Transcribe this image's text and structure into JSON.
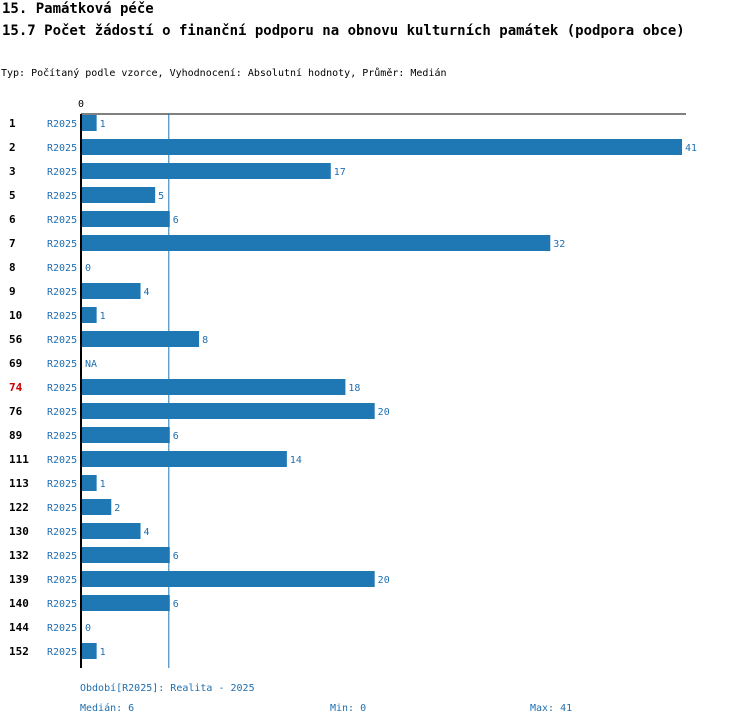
{
  "header": {
    "section_title": "15. Památková péče",
    "chart_title": "15.7 Počet žádostí o finanční podporu na obnovu kulturních památek (podpora obce)",
    "subtitle": "Typ: Počítaný podle vzorce, Vyhodnocení: Absolutní hodnoty, Průměr: Medián"
  },
  "footer": {
    "period": "Období[R2025]: Realita - 2025",
    "median": "Medián: 6",
    "min": "Min: 0",
    "max": "Max: 41"
  },
  "colors": {
    "bar": "#1f77b4",
    "text_blue": "#1f6fb0",
    "highlight": "#cc0000"
  },
  "chart_data": {
    "type": "bar",
    "orientation": "horizontal",
    "axis_zero_label": "0",
    "xlim": [
      0,
      41
    ],
    "median": 6,
    "highlight_category": "74",
    "categories": [
      "1",
      "2",
      "3",
      "5",
      "6",
      "7",
      "8",
      "9",
      "10",
      "56",
      "69",
      "74",
      "76",
      "89",
      "111",
      "113",
      "122",
      "130",
      "132",
      "139",
      "140",
      "144",
      "152"
    ],
    "series": [
      {
        "period": "R2025",
        "values": [
          1,
          41,
          17,
          5,
          6,
          32,
          0,
          4,
          1,
          8,
          null,
          18,
          20,
          6,
          14,
          1,
          2,
          4,
          6,
          20,
          6,
          0,
          1
        ],
        "value_labels": [
          "1",
          "41",
          "17",
          "5",
          "6",
          "32",
          "0",
          "4",
          "1",
          "8",
          "NA",
          "18",
          "20",
          "6",
          "14",
          "1",
          "2",
          "4",
          "6",
          "20",
          "6",
          "0",
          "1"
        ]
      }
    ]
  }
}
